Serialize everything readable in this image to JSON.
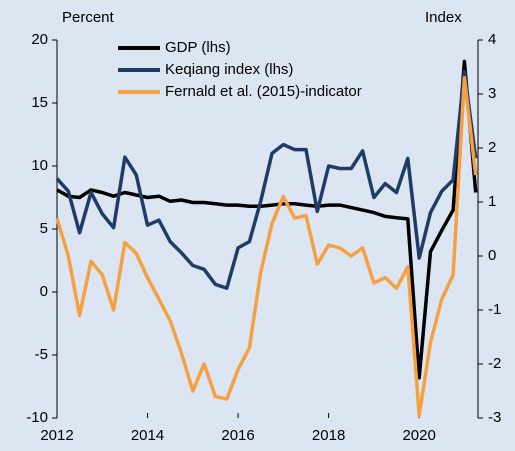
{
  "chart_data": {
    "type": "line",
    "y_label": "Percent",
    "y2_label": "Index",
    "x": [
      2012.0,
      2012.25,
      2012.5,
      2012.75,
      2013.0,
      2013.25,
      2013.5,
      2013.75,
      2014.0,
      2014.25,
      2014.5,
      2014.75,
      2015.0,
      2015.25,
      2015.5,
      2015.75,
      2016.0,
      2016.25,
      2016.5,
      2016.75,
      2017.0,
      2017.25,
      2017.5,
      2017.75,
      2018.0,
      2018.25,
      2018.5,
      2018.75,
      2019.0,
      2019.25,
      2019.5,
      2019.75,
      2020.0,
      2020.25,
      2020.5,
      2020.75,
      2021.0,
      2021.25
    ],
    "series": [
      {
        "name": "GDP (lhs)",
        "color": "#000000",
        "values": [
          8.1,
          7.6,
          7.5,
          8.1,
          7.9,
          7.6,
          7.9,
          7.7,
          7.5,
          7.6,
          7.2,
          7.3,
          7.1,
          7.1,
          7.0,
          6.9,
          6.9,
          6.8,
          6.8,
          6.9,
          7.0,
          7.0,
          6.9,
          6.8,
          6.9,
          6.9,
          6.7,
          6.5,
          6.3,
          6.0,
          5.9,
          5.8,
          -6.8,
          3.2,
          4.9,
          6.5,
          18.3,
          7.9
        ]
      },
      {
        "name": "Keqiang index (lhs)",
        "color": "#1f3b66",
        "values": [
          9.0,
          8.0,
          4.7,
          7.9,
          6.2,
          5.1,
          10.7,
          9.3,
          5.3,
          5.7,
          4.0,
          3.1,
          2.1,
          1.8,
          0.6,
          0.3,
          3.5,
          4.0,
          7.2,
          11.0,
          11.7,
          11.3,
          11.3,
          6.4,
          10.0,
          9.8,
          9.8,
          11.2,
          7.5,
          8.6,
          7.9,
          10.6,
          2.7,
          6.3,
          8.0,
          8.9,
          17.5,
          10.6
        ]
      },
      {
        "name": "Fernald et al. (2015)-indicator",
        "color": "#f5a142",
        "axis": "y2",
        "values": [
          0.7,
          0.0,
          -1.1,
          -0.1,
          -0.35,
          -1.0,
          0.25,
          0.05,
          -0.4,
          -0.8,
          -1.2,
          -1.8,
          -2.5,
          -2.0,
          -2.6,
          -2.65,
          -2.1,
          -1.7,
          -0.3,
          0.6,
          1.1,
          0.7,
          0.75,
          -0.15,
          0.2,
          0.15,
          0.0,
          0.15,
          -0.5,
          -0.4,
          -0.6,
          -0.2,
          -2.95,
          -1.6,
          -0.8,
          -0.35,
          3.3,
          1.5
        ]
      }
    ],
    "xlim": [
      2012,
      2021.3
    ],
    "xticks": [
      2012,
      2014,
      2016,
      2018,
      2020
    ],
    "ylim": [
      -10,
      20
    ],
    "yticks": [
      -10,
      -5,
      0,
      5,
      10,
      15,
      20
    ],
    "y2lim": [
      -3,
      4
    ],
    "y2ticks": [
      -3,
      -2,
      -1,
      0,
      1,
      2,
      3,
      4
    ],
    "legend": "top-left"
  }
}
